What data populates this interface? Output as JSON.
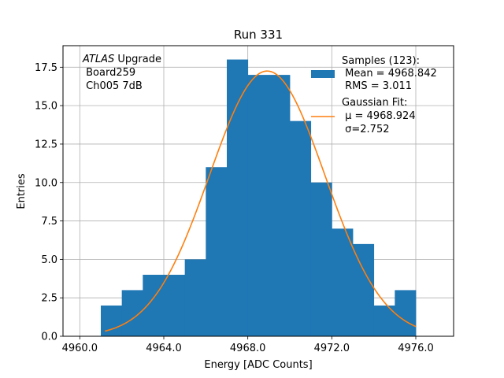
{
  "chart_data": {
    "type": "bar",
    "title": "Run 331",
    "xlabel": "Energy [ADC Counts]",
    "ylabel": "Entries",
    "xlim": [
      4959.2,
      4977.8
    ],
    "ylim": [
      0,
      18.9
    ],
    "grid": true,
    "legend_position": "top-right",
    "xticks": [
      4960,
      4964,
      4968,
      4972,
      4976
    ],
    "xtick_labels": [
      "4960.0",
      "4964.0",
      "4968.0",
      "4972.0",
      "4976.0"
    ],
    "yticks": [
      0,
      2.5,
      5,
      7.5,
      10,
      12.5,
      15,
      17.5
    ],
    "ytick_labels": [
      "0.0",
      "2.5",
      "5.0",
      "7.5",
      "10.0",
      "12.5",
      "15.0",
      "17.5"
    ],
    "annotation": {
      "line1_italic": "ATLAS",
      "line1_rest": " Upgrade",
      "line2": " Board259",
      "line3": " Ch005 7dB"
    },
    "histogram": {
      "name": "Samples (123):",
      "bin_edges": [
        4961,
        4962,
        4963,
        4964,
        4965,
        4966,
        4967,
        4968,
        4969,
        4970,
        4971,
        4972,
        4973,
        4974,
        4975,
        4976
      ],
      "values": [
        2,
        3,
        4,
        4,
        5,
        11,
        18,
        17,
        17,
        14,
        10,
        7,
        6,
        2,
        3
      ],
      "color": "#1f77b4"
    },
    "fit": {
      "name": "Gaussian Fit:",
      "mu": 4968.924,
      "sigma": 2.752,
      "amplitude": 17.25,
      "x_range": [
        4961.2,
        4976
      ],
      "color": "#ff7f0e"
    },
    "legend": {
      "hist_label": "Samples (123):",
      "hist_line2": " Mean = 4968.842",
      "hist_line3": " RMS = 3.011",
      "fit_label": "Gaussian Fit:",
      "fit_line2": " μ = 4968.924",
      "fit_line3": " σ=2.752"
    }
  }
}
